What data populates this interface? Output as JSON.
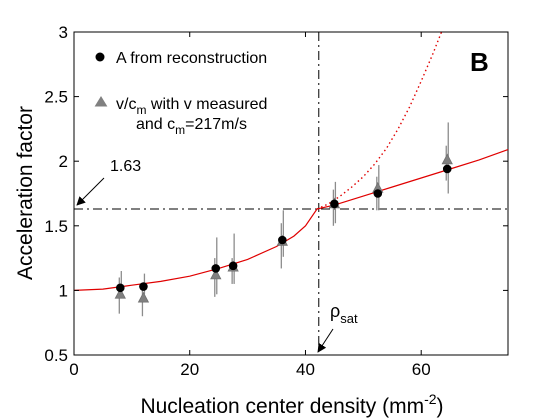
{
  "chart_data": {
    "type": "scatter",
    "xlabel": "Nucleation center density (mm",
    "xlabel_sup": "-2",
    "xlabel_end": ")",
    "ylabel": "Acceleration factor",
    "xlim": [
      0,
      75
    ],
    "ylim": [
      0.5,
      3
    ],
    "x_ticks": [
      0,
      20,
      40,
      60
    ],
    "y_ticks": [
      0.5,
      1,
      1.5,
      2,
      2.5,
      3
    ],
    "y_tick_labels": [
      "0.5",
      "1",
      "1.5",
      "2",
      "2.5",
      "3"
    ],
    "panel_label": "B",
    "legend": {
      "placement": "top-left",
      "entries": [
        {
          "marker": "circle",
          "color": "#000000",
          "text": "A from reconstruction"
        },
        {
          "marker": "triangle",
          "color": "#808080",
          "text_main": "v/c",
          "text_sub": "m",
          "text_rest": " with v measured",
          "line2_main": "and c",
          "line2_sub": "m",
          "line2_rest": "=217m/s"
        }
      ]
    },
    "series": [
      {
        "name": "A from reconstruction",
        "marker": "circle",
        "color": "#000000",
        "points": [
          {
            "x": 8,
            "y": 1.02,
            "err": [
              0.97,
              1.15
            ]
          },
          {
            "x": 12,
            "y": 1.03,
            "err": [
              0.97,
              1.13
            ]
          },
          {
            "x": 24.5,
            "y": 1.17,
            "err": [
              0.97,
              1.41
            ]
          },
          {
            "x": 27.5,
            "y": 1.19,
            "err": [
              1.05,
              1.44
            ]
          },
          {
            "x": 36,
            "y": 1.39,
            "err": [
              1.26,
              1.62
            ]
          },
          {
            "x": 45,
            "y": 1.67,
            "err": [
              1.52,
              1.84
            ]
          },
          {
            "x": 52.5,
            "y": 1.75,
            "err": [
              1.62,
              1.97
            ]
          },
          {
            "x": 64.5,
            "y": 1.94,
            "err": [
              1.75,
              2.3
            ]
          }
        ]
      },
      {
        "name": "v/cm with v measured and cm=217m/s",
        "marker": "triangle",
        "color": "#808080",
        "points": [
          {
            "x": 8,
            "y": 0.97,
            "err": [
              0.82,
              1.1
            ]
          },
          {
            "x": 12,
            "y": 0.94,
            "err": [
              0.8,
              1.05
            ]
          },
          {
            "x": 24.5,
            "y": 1.12,
            "err": [
              0.95,
              1.25
            ]
          },
          {
            "x": 27.5,
            "y": 1.18,
            "err": [
              1.05,
              1.25
            ]
          },
          {
            "x": 36,
            "y": 1.38,
            "err": [
              1.17,
              1.52
            ]
          },
          {
            "x": 45,
            "y": 1.67,
            "err": [
              1.5,
              1.78
            ]
          },
          {
            "x": 52.5,
            "y": 1.79,
            "err": [
              1.62,
              1.88
            ]
          },
          {
            "x": 64.5,
            "y": 2.01,
            "err": [
              1.85,
              2.12
            ]
          }
        ]
      }
    ],
    "fit_curve": {
      "color": "#e00000",
      "points": [
        [
          0,
          1.0
        ],
        [
          5,
          1.01
        ],
        [
          10,
          1.04
        ],
        [
          15,
          1.07
        ],
        [
          20,
          1.11
        ],
        [
          25,
          1.17
        ],
        [
          30,
          1.24
        ],
        [
          35,
          1.34
        ],
        [
          38,
          1.42
        ],
        [
          40,
          1.5
        ],
        [
          42,
          1.63
        ],
        [
          45,
          1.66
        ],
        [
          50,
          1.73
        ],
        [
          55,
          1.8
        ],
        [
          60,
          1.87
        ],
        [
          65,
          1.94
        ],
        [
          70,
          2.01
        ],
        [
          75,
          2.09
        ]
      ]
    },
    "extrapolation_curve": {
      "color": "#e00000",
      "style": "dotted",
      "points": [
        [
          42,
          1.63
        ],
        [
          44,
          1.67
        ],
        [
          46,
          1.73
        ],
        [
          48,
          1.8
        ],
        [
          50,
          1.88
        ],
        [
          52,
          1.98
        ],
        [
          54,
          2.1
        ],
        [
          56,
          2.25
        ],
        [
          58,
          2.42
        ],
        [
          60,
          2.62
        ],
        [
          62,
          2.83
        ],
        [
          63.5,
          3.0
        ]
      ]
    },
    "reference_lines": {
      "horizontal": {
        "y": 1.63,
        "style": "dash-dot"
      },
      "vertical": {
        "x": 42.3,
        "style": "dash-dot"
      }
    },
    "annotations": {
      "h_value": "1.63",
      "v_label_main": "ρ",
      "v_label_sub": "sat"
    }
  }
}
